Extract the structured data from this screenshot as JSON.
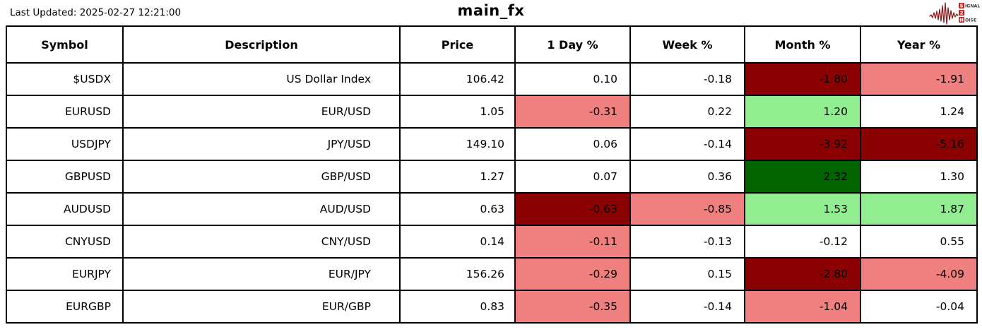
{
  "header": {
    "last_updated": "Last Updated: 2025-02-27 12:21:00",
    "title": "main_fx"
  },
  "logo": {
    "line1_boxed": "S",
    "line1_text": "IGNAL",
    "line2_boxed": "2",
    "line3_boxed": "N",
    "line3_text": "OISE",
    "box_color": "#c41f1f",
    "waveform_color": "#8b1a1a",
    "text_color": "#3d3d3d"
  },
  "cell_colors": {
    "none": "#ffffff",
    "darkred": "#8b0000",
    "lightcoral": "#f08080",
    "lightgreen": "#90ee90",
    "darkgreen": "#006400"
  },
  "chart_data": {
    "type": "table",
    "title": "main_fx",
    "columns": [
      "Symbol",
      "Description",
      "Price",
      "1 Day %",
      "Week %",
      "Month %",
      "Year %"
    ],
    "rows": [
      {
        "symbol": "$USDX",
        "description": "US Dollar Index",
        "price": "106.42",
        "changes": [
          {
            "value": "0.10",
            "bg": "none"
          },
          {
            "value": "-0.18",
            "bg": "none"
          },
          {
            "value": "-1.80",
            "bg": "darkred"
          },
          {
            "value": "-1.91",
            "bg": "lightcoral"
          }
        ]
      },
      {
        "symbol": "EURUSD",
        "description": "EUR/USD",
        "price": "1.05",
        "changes": [
          {
            "value": "-0.31",
            "bg": "lightcoral"
          },
          {
            "value": "0.22",
            "bg": "none"
          },
          {
            "value": "1.20",
            "bg": "lightgreen"
          },
          {
            "value": "1.24",
            "bg": "none"
          }
        ]
      },
      {
        "symbol": "USDJPY",
        "description": "JPY/USD",
        "price": "149.10",
        "changes": [
          {
            "value": "0.06",
            "bg": "none"
          },
          {
            "value": "-0.14",
            "bg": "none"
          },
          {
            "value": "-3.92",
            "bg": "darkred"
          },
          {
            "value": "-5.16",
            "bg": "darkred"
          }
        ]
      },
      {
        "symbol": "GBPUSD",
        "description": "GBP/USD",
        "price": "1.27",
        "changes": [
          {
            "value": "0.07",
            "bg": "none"
          },
          {
            "value": "0.36",
            "bg": "none"
          },
          {
            "value": "2.32",
            "bg": "darkgreen"
          },
          {
            "value": "1.30",
            "bg": "none"
          }
        ]
      },
      {
        "symbol": "AUDUSD",
        "description": "AUD/USD",
        "price": "0.63",
        "changes": [
          {
            "value": "-0.63",
            "bg": "darkred"
          },
          {
            "value": "-0.85",
            "bg": "lightcoral"
          },
          {
            "value": "1.53",
            "bg": "lightgreen"
          },
          {
            "value": "1.87",
            "bg": "lightgreen"
          }
        ]
      },
      {
        "symbol": "CNYUSD",
        "description": "CNY/USD",
        "price": "0.14",
        "changes": [
          {
            "value": "-0.11",
            "bg": "lightcoral"
          },
          {
            "value": "-0.13",
            "bg": "none"
          },
          {
            "value": "-0.12",
            "bg": "none"
          },
          {
            "value": "0.55",
            "bg": "none"
          }
        ]
      },
      {
        "symbol": "EURJPY",
        "description": "EUR/JPY",
        "price": "156.26",
        "changes": [
          {
            "value": "-0.29",
            "bg": "lightcoral"
          },
          {
            "value": "0.15",
            "bg": "none"
          },
          {
            "value": "-2.80",
            "bg": "darkred"
          },
          {
            "value": "-4.09",
            "bg": "lightcoral"
          }
        ]
      },
      {
        "symbol": "EURGBP",
        "description": "EUR/GBP",
        "price": "0.83",
        "changes": [
          {
            "value": "-0.35",
            "bg": "lightcoral"
          },
          {
            "value": "-0.14",
            "bg": "none"
          },
          {
            "value": "-1.04",
            "bg": "lightcoral"
          },
          {
            "value": "-0.04",
            "bg": "none"
          }
        ]
      }
    ]
  }
}
